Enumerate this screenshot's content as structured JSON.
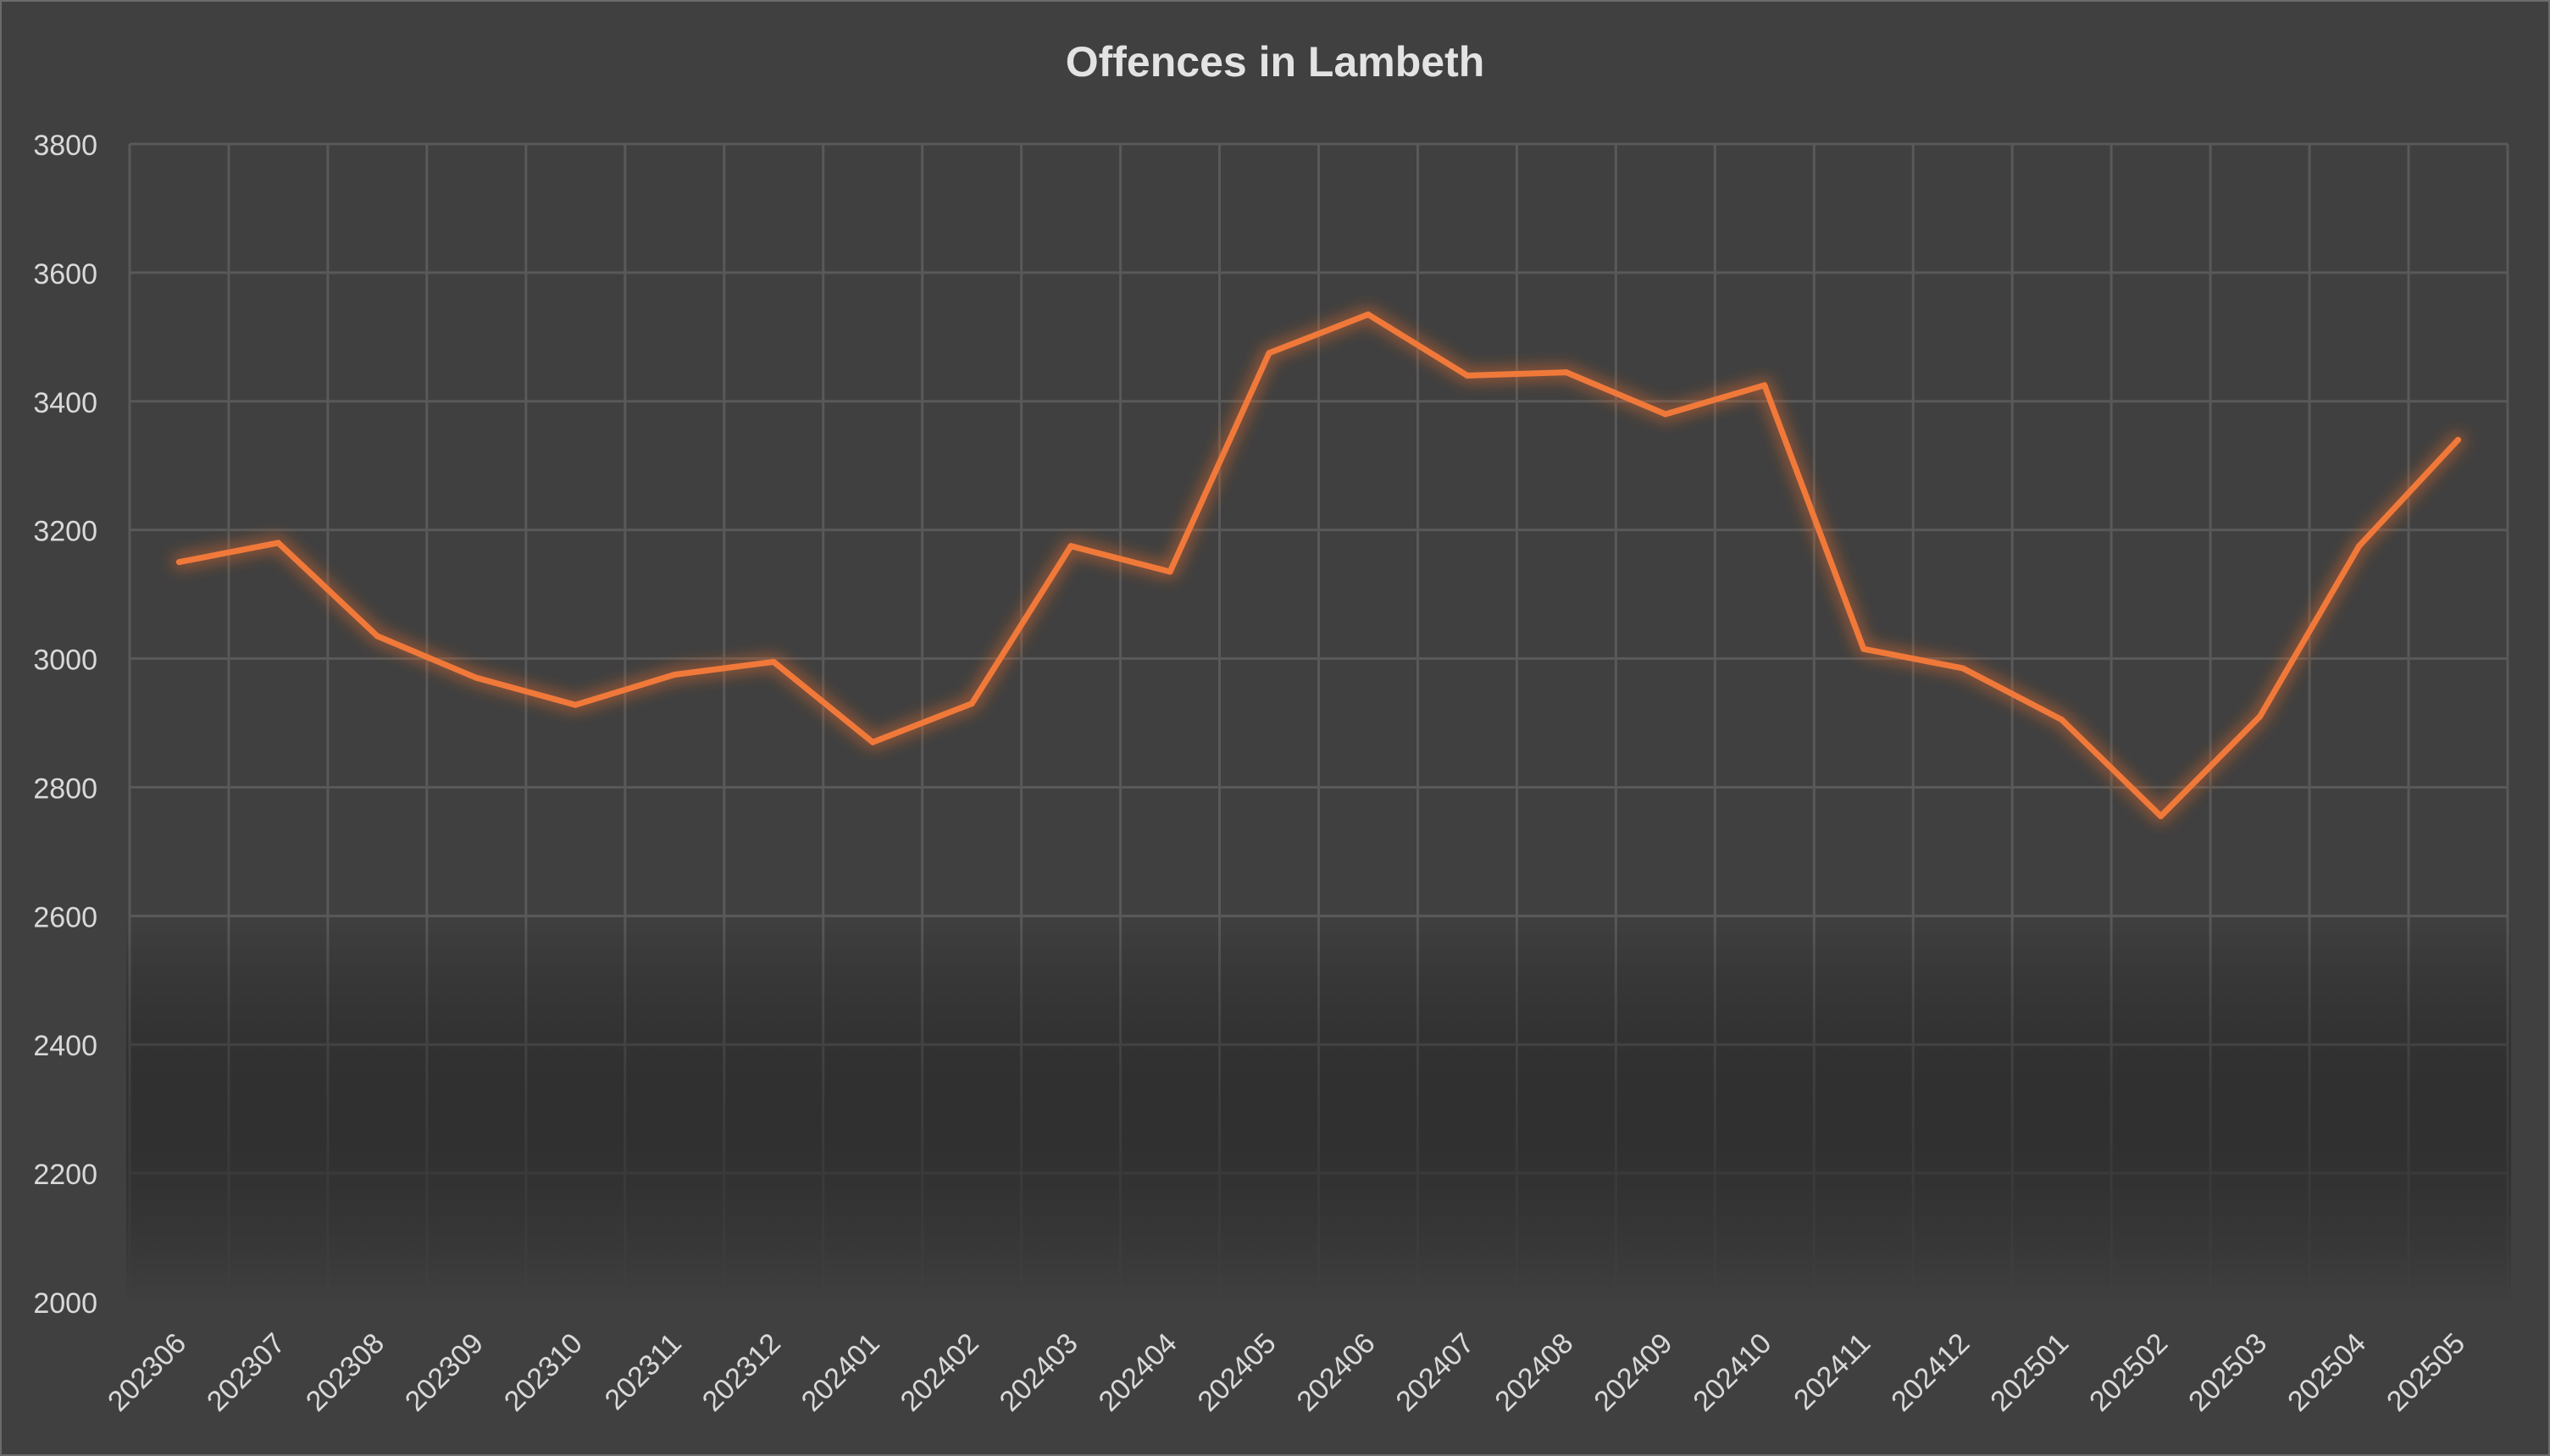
{
  "chart_data": {
    "type": "line",
    "title": "Offences in Lambeth",
    "xlabel": "",
    "ylabel": "",
    "categories": [
      "202306",
      "202307",
      "202308",
      "202309",
      "202310",
      "202311",
      "202312",
      "202401",
      "202402",
      "202403",
      "202404",
      "202405",
      "202406",
      "202407",
      "202408",
      "202409",
      "202410",
      "202411",
      "202412",
      "202501",
      "202502",
      "202503",
      "202504",
      "202505"
    ],
    "series": [
      {
        "values": [
          3150,
          3180,
          3035,
          2970,
          2928,
          2975,
          2995,
          2870,
          2930,
          3175,
          3135,
          3475,
          3535,
          3440,
          3445,
          3380,
          3425,
          3015,
          2985,
          2905,
          2755,
          2910,
          3175,
          3340
        ]
      }
    ],
    "ylim": [
      2000,
      3800
    ],
    "yticks": [
      2000,
      2200,
      2400,
      2600,
      2800,
      3000,
      3200,
      3400,
      3600,
      3800
    ],
    "grid": true,
    "legend": "none",
    "colors": {
      "background": "#404040",
      "line": "#f0793a",
      "glow": "#e8692a",
      "grid": "#595959",
      "text": "#d9d9d9",
      "title": "#e3e3e3"
    }
  }
}
